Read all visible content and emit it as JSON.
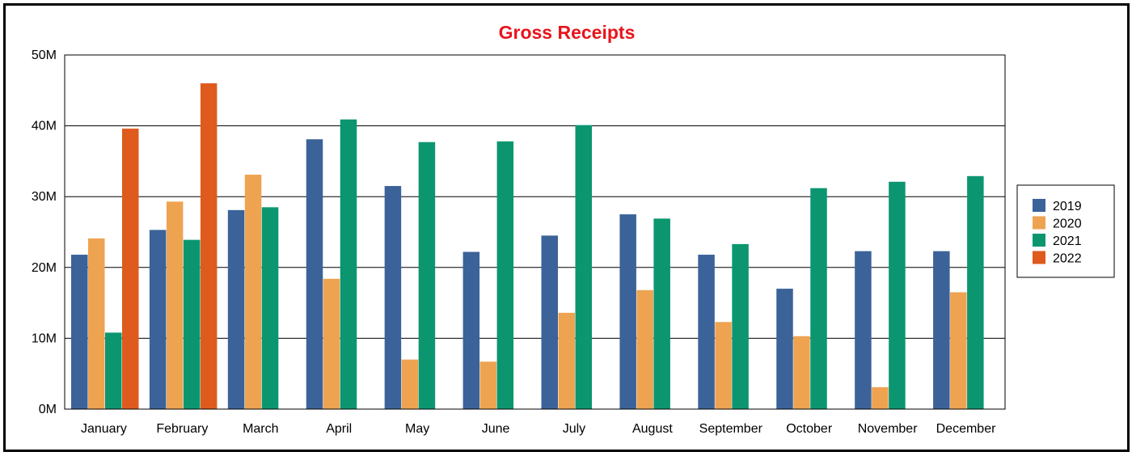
{
  "chart_data": {
    "type": "bar",
    "title": "Gross Receipts",
    "title_color": "#e8141c",
    "xlabel": "",
    "ylabel": "",
    "ylim": [
      0,
      50000000
    ],
    "yticks": [
      0,
      10000000,
      20000000,
      30000000,
      40000000,
      50000000
    ],
    "ytick_labels": [
      "0M",
      "10M",
      "20M",
      "30M",
      "40M",
      "50M"
    ],
    "grid": true,
    "legend_position": "right",
    "categories": [
      "January",
      "February",
      "March",
      "April",
      "May",
      "June",
      "July",
      "August",
      "September",
      "October",
      "November",
      "December"
    ],
    "series": [
      {
        "name": "2019",
        "color": "#3b6399",
        "values": [
          21800000,
          25300000,
          28100000,
          38100000,
          31500000,
          22200000,
          24500000,
          27500000,
          21800000,
          17000000,
          22300000,
          22300000
        ]
      },
      {
        "name": "2020",
        "color": "#eea351",
        "values": [
          24100000,
          29300000,
          33100000,
          18400000,
          7000000,
          6700000,
          13600000,
          16800000,
          12300000,
          10300000,
          3100000,
          16500000
        ]
      },
      {
        "name": "2021",
        "color": "#0b9670",
        "values": [
          10800000,
          23900000,
          28500000,
          40900000,
          37700000,
          37800000,
          40100000,
          26900000,
          23300000,
          31200000,
          32100000,
          32900000
        ]
      },
      {
        "name": "2022",
        "color": "#df5a1d",
        "values": [
          39600000,
          46000000,
          null,
          null,
          null,
          null,
          null,
          null,
          null,
          null,
          null,
          null
        ]
      }
    ]
  }
}
